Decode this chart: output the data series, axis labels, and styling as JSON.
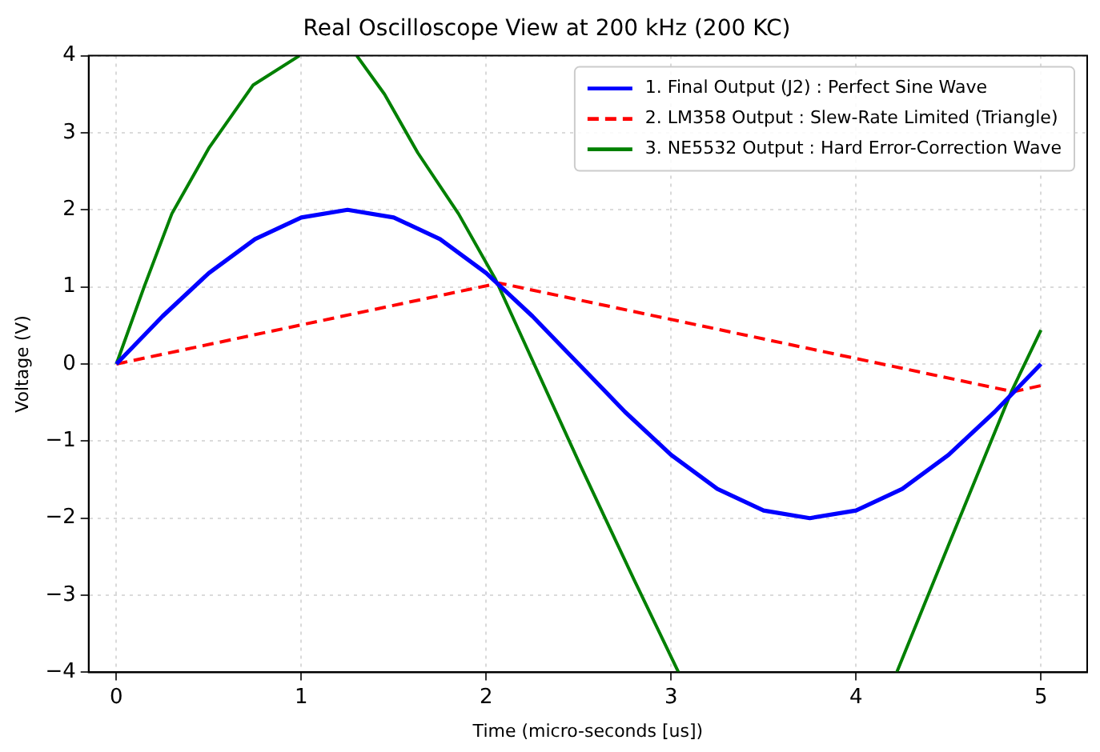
{
  "chart_data": {
    "type": "line",
    "title": "Real Oscilloscope View at 200 kHz (200 KC)",
    "xlabel": "Time (micro-seconds [us])",
    "ylabel": "Voltage (V)",
    "xlim": [
      -0.15,
      5.25
    ],
    "xticks": [
      0,
      1,
      2,
      3,
      4,
      5
    ],
    "ylim": [
      -4,
      4
    ],
    "yticks": [
      {
        "value": -4,
        "label": "−4"
      },
      {
        "value": -3,
        "label": "−3"
      },
      {
        "value": -2,
        "label": "−2"
      },
      {
        "value": -1,
        "label": "−1"
      },
      0,
      1,
      2,
      3,
      4
    ],
    "grid": true,
    "legend": "top right",
    "marker": "none",
    "series": [
      {
        "name": "1. Final Output (J2) : Perfect Sine Wave",
        "color": "#0000ff",
        "line_style": "solid",
        "x": [
          0,
          0.25,
          0.5,
          0.75,
          1,
          1.25,
          1.5,
          1.75,
          2,
          2.25,
          2.5,
          2.75,
          3,
          3.25,
          3.5,
          3.75,
          4,
          4.25,
          4.5,
          4.75,
          5
        ],
        "values": [
          0,
          0.62,
          1.18,
          1.62,
          1.9,
          2,
          1.9,
          1.62,
          1.18,
          0.62,
          0,
          -0.62,
          -1.18,
          -1.62,
          -1.9,
          -2,
          -1.9,
          -1.62,
          -1.18,
          -0.62,
          0
        ]
      },
      {
        "name": "2. LM358 Output : Slew-Rate Limited (Triangle)",
        "color": "#ff0000",
        "line_style": "dashed",
        "x": [
          0,
          2.07,
          4.85,
          5
        ],
        "values": [
          0,
          1.05,
          -0.36,
          -0.28
        ]
      },
      {
        "name": "3. NE5532 Output : Hard Error-Correction Wave",
        "color": "#008000",
        "line_style": "solid",
        "x": [
          0,
          0.15,
          0.3,
          0.5,
          0.74,
          0.99,
          1.15,
          1.3,
          1.45,
          1.63,
          1.85,
          2.05,
          2.51,
          2.8,
          3.04,
          3.6,
          4.22,
          4.5,
          4.84,
          5
        ],
        "values": [
          0,
          1.0,
          1.95,
          2.8,
          3.62,
          4,
          null,
          4,
          3.5,
          2.74,
          1.95,
          1.1,
          -1.32,
          -2.8,
          -4,
          null,
          -4,
          -2.35,
          -0.36,
          0.44
        ]
      }
    ]
  }
}
